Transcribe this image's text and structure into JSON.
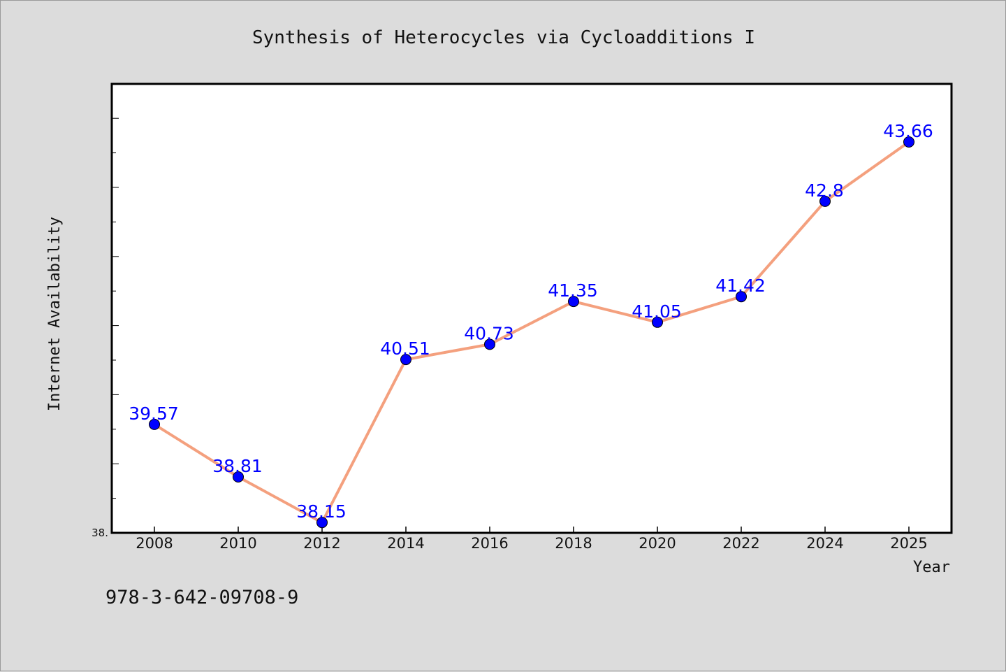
{
  "chart_data": {
    "type": "line",
    "title": "Synthesis of Heterocycles via Cycloadditions I",
    "xlabel": "Year",
    "ylabel": "Internet Availability",
    "x": [
      "2008",
      "2010",
      "2012",
      "2014",
      "2016",
      "2018",
      "2020",
      "2022",
      "2024",
      "2025"
    ],
    "series": [
      {
        "values": [
          39.57,
          38.81,
          38.15,
          40.51,
          40.73,
          41.35,
          41.05,
          41.42,
          42.8,
          43.66
        ],
        "data_labels": [
          "39.57",
          "38.81",
          "38.15",
          "40.51",
          "40.73",
          "41.35",
          "41.05",
          "41.42",
          "42.8",
          "43.66"
        ]
      }
    ],
    "ylim": [
      38.0,
      44.5
    ],
    "y_tick_labels": [
      "38."
    ],
    "grid": false,
    "legend": "none",
    "colors": {
      "line": "#f4a07e",
      "marker": "#0000ff",
      "data_label": "#0000ff",
      "plot_background": "#ffffff",
      "page_background": "#dcdcdc"
    }
  },
  "footer": {
    "isbn": "978-3-642-09708-9"
  }
}
